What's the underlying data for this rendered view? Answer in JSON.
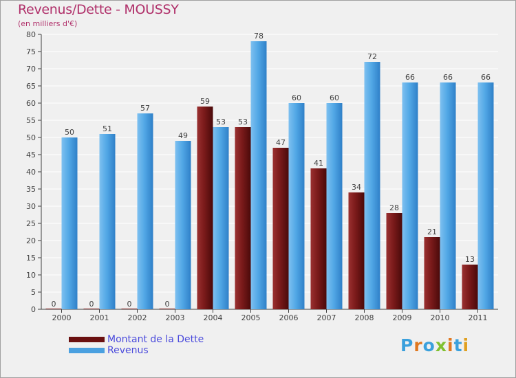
{
  "title": "Revenus/Dette - MOUSSY",
  "subtitle": "(en milliers d'€)",
  "logo": {
    "letters": [
      "P",
      "r",
      "o",
      "x",
      "i",
      "t",
      "i"
    ],
    "colors": [
      "#3aa0dc",
      "#e07820",
      "#3aa0dc",
      "#80c030",
      "#e07820",
      "#3aa0dc",
      "#e0a020"
    ]
  },
  "colors": {
    "dette": "#7a1a1a",
    "revenus": "#4aa0e0",
    "title": "#b0306a",
    "legend_text": "#4a4adc"
  },
  "chart_data": {
    "type": "bar",
    "title": "Revenus/Dette - MOUSSY",
    "ylabel": "(en milliers d'€)",
    "categories": [
      "2000",
      "2001",
      "2002",
      "2003",
      "2004",
      "2005",
      "2006",
      "2007",
      "2008",
      "2009",
      "2010",
      "2011"
    ],
    "series": [
      {
        "name": "Montant de la Dette",
        "values": [
          0,
          0,
          0,
          0,
          59,
          53,
          47,
          41,
          34,
          28,
          21,
          13
        ],
        "color": "#7a1a1a"
      },
      {
        "name": "Revenus",
        "values": [
          50,
          51,
          57,
          49,
          53,
          78,
          60,
          60,
          72,
          66,
          66,
          66
        ],
        "color": "#4aa0e0"
      }
    ],
    "ylim": [
      0,
      80
    ],
    "yticks": [
      0,
      5,
      10,
      15,
      20,
      25,
      30,
      35,
      40,
      45,
      50,
      55,
      60,
      65,
      70,
      75,
      80
    ],
    "grid": true,
    "legend": "bottom-left"
  }
}
